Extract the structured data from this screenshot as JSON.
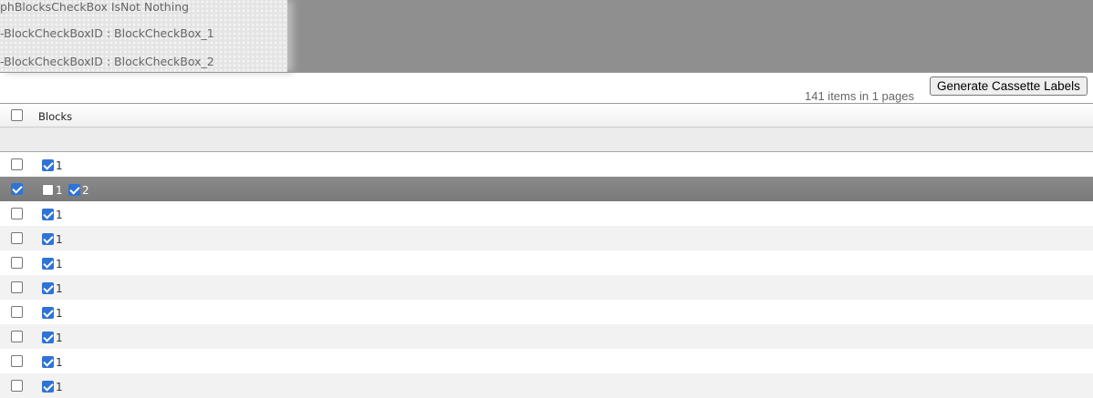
{
  "debug_lines": [
    "phBlocksCheckBox IsNot Nothing",
    "-BlockCheckBoxID : BlockCheckBox_1",
    "-BlockCheckBoxID : BlockCheckBox_2"
  ],
  "toolbar": {
    "generate_label": "Generate Cassette Labels",
    "count_text": "141 items in 1 pages"
  },
  "grid": {
    "header": {
      "blocks": "Blocks",
      "select_all": false
    },
    "rows": [
      {
        "selected": false,
        "blocks": [
          {
            "label": "1",
            "checked": true
          }
        ]
      },
      {
        "selected": true,
        "blocks": [
          {
            "label": "1",
            "checked": false
          },
          {
            "label": "2",
            "checked": true
          }
        ]
      },
      {
        "selected": false,
        "blocks": [
          {
            "label": "1",
            "checked": true
          }
        ]
      },
      {
        "selected": false,
        "blocks": [
          {
            "label": "1",
            "checked": true
          }
        ]
      },
      {
        "selected": false,
        "blocks": [
          {
            "label": "1",
            "checked": true
          }
        ]
      },
      {
        "selected": false,
        "blocks": [
          {
            "label": "1",
            "checked": true
          }
        ]
      },
      {
        "selected": false,
        "blocks": [
          {
            "label": "1",
            "checked": true
          }
        ]
      },
      {
        "selected": false,
        "blocks": [
          {
            "label": "1",
            "checked": true
          }
        ]
      },
      {
        "selected": false,
        "blocks": [
          {
            "label": "1",
            "checked": true
          }
        ]
      },
      {
        "selected": false,
        "blocks": [
          {
            "label": "1",
            "checked": true
          }
        ]
      }
    ]
  },
  "colors": {
    "accent": "#2f73d6",
    "selected_row": "#828282",
    "alt_row": "#f2f2f2"
  }
}
